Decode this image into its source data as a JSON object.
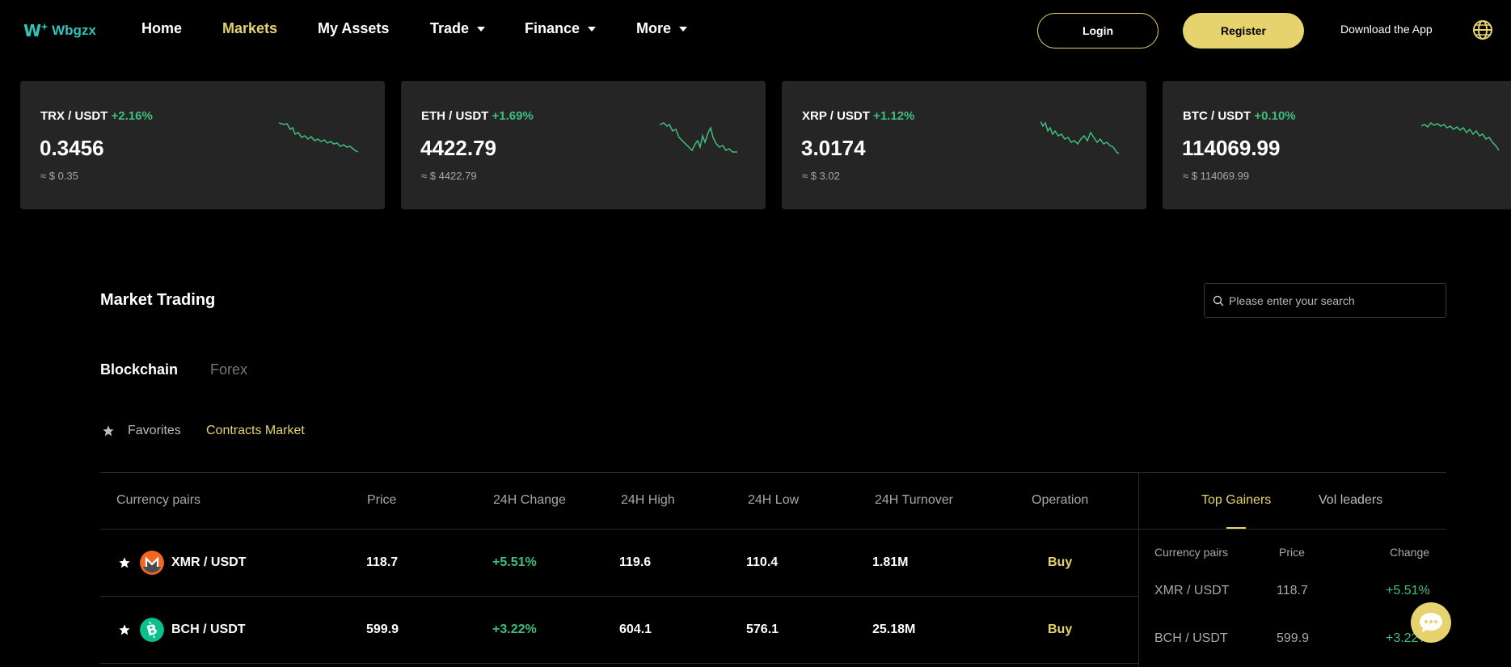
{
  "brand": {
    "name": "Wbgzx",
    "mark": "W"
  },
  "nav": {
    "home": "Home",
    "markets": "Markets",
    "assets": "My Assets",
    "trade": "Trade",
    "finance": "Finance",
    "more": "More"
  },
  "auth": {
    "login": "Login",
    "register": "Register",
    "download": "Download the App"
  },
  "tickers": [
    {
      "pair": "TRX / USDT",
      "change": "+2.16%",
      "price": "0.3456",
      "usd": "≈ $ 0.35"
    },
    {
      "pair": "ETH / USDT",
      "change": "+1.69%",
      "price": "4422.79",
      "usd": "≈ $ 4422.79"
    },
    {
      "pair": "XRP / USDT",
      "change": "+1.12%",
      "price": "3.0174",
      "usd": "≈ $ 3.02"
    },
    {
      "pair": "BTC / USDT",
      "change": "+0.10%",
      "price": "114069.99",
      "usd": "≈ $ 114069.99"
    }
  ],
  "market": {
    "title": "Market Trading",
    "search_placeholder": "Please enter your search",
    "tabs": {
      "blockchain": "Blockchain",
      "forex": "Forex"
    },
    "subtabs": {
      "favorites": "Favorites",
      "contracts": "Contracts Market"
    }
  },
  "table": {
    "headers": {
      "pair": "Currency pairs",
      "price": "Price",
      "change": "24H Change",
      "high": "24H High",
      "low": "24H Low",
      "turnover": "24H Turnover",
      "operation": "Operation"
    },
    "rows": [
      {
        "pair": "XMR / USDT",
        "price": "118.7",
        "change": "+5.51%",
        "high": "119.6",
        "low": "110.4",
        "turnover": "1.81M",
        "action": "Buy",
        "icon": "monero-icon"
      },
      {
        "pair": "BCH / USDT",
        "price": "599.9",
        "change": "+3.22%",
        "high": "604.1",
        "low": "576.1",
        "turnover": "25.18M",
        "action": "Buy",
        "icon": "bitcoin-cash-icon"
      }
    ]
  },
  "side_panel": {
    "tabs": {
      "gainers": "Top Gainers",
      "volume": "Vol leaders"
    },
    "headers": {
      "pair": "Currency pairs",
      "price": "Price",
      "change": "Change"
    },
    "rows": [
      {
        "pair": "XMR / USDT",
        "price": "118.7",
        "change": "+5.51%"
      },
      {
        "pair": "BCH / USDT",
        "price": "599.9",
        "change": "+3.22%"
      }
    ]
  },
  "colors": {
    "accent": "#e6d36e",
    "positive": "#3fbf7f",
    "brand": "#2ec4b6",
    "card_bg": "#252525"
  }
}
